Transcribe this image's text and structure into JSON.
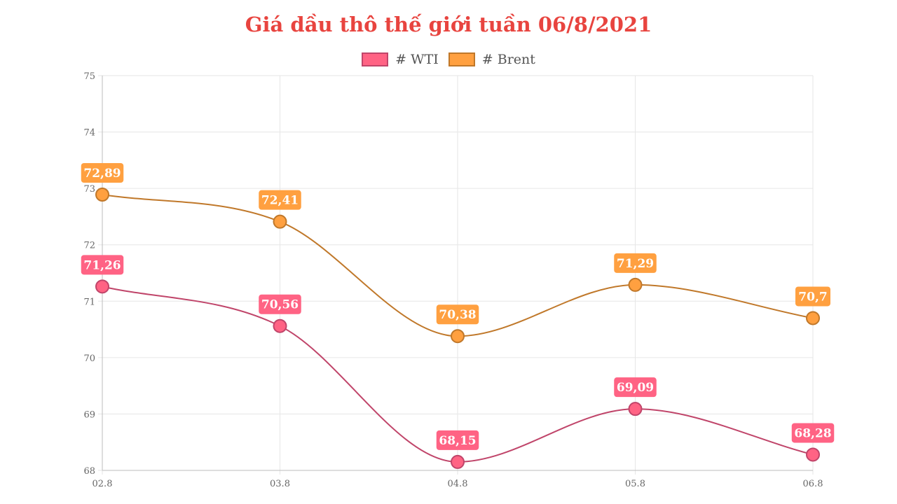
{
  "chart_data": {
    "type": "line",
    "title": "Giá dầu thô thế giới tuần 06/8/2021",
    "categories": [
      "02.8",
      "03.8",
      "04.8",
      "05.8",
      "06.8"
    ],
    "series": [
      {
        "name": "# WTI",
        "values": [
          71.26,
          70.56,
          68.15,
          69.09,
          68.28
        ],
        "labels": [
          "71,26",
          "70,56",
          "68,15",
          "69,09",
          "68,28"
        ],
        "color": "#ff6384",
        "line_color": "#c0456a"
      },
      {
        "name": "# Brent",
        "values": [
          72.89,
          72.41,
          70.38,
          71.29,
          70.7
        ],
        "labels": [
          "72,89",
          "72,41",
          "70,38",
          "71,29",
          "70,7"
        ],
        "color": "#ffa040",
        "line_color": "#c0782a"
      }
    ],
    "ylim": [
      68,
      75
    ],
    "yticks": [
      68,
      69,
      70,
      71,
      72,
      73,
      74,
      75
    ],
    "grid": true,
    "legend_position": "top",
    "title_color": "#e8443f"
  }
}
